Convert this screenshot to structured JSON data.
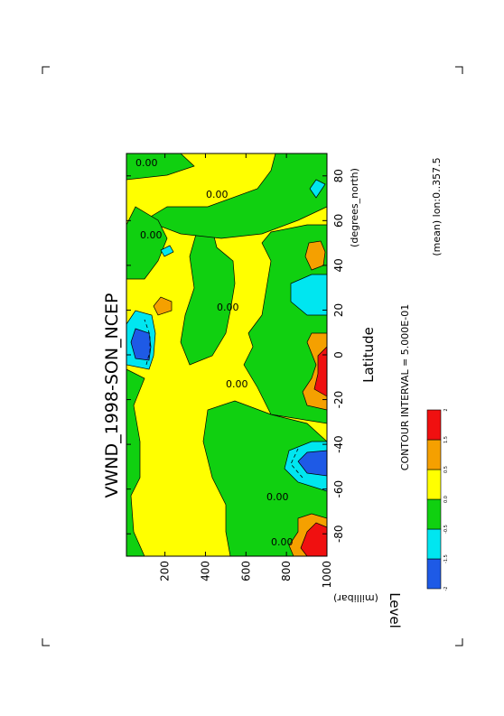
{
  "chart_data": {
    "type": "heatmap",
    "title": "VWND_1998-SON_NCEP",
    "xlabel": "Latitude",
    "x_unit_label": "(degrees_north)",
    "ylabel": "Level",
    "y_unit_label": "(millibar)",
    "x_ticks": [
      "-80",
      "-60",
      "-40",
      "-20",
      "0",
      "20",
      "40",
      "60",
      "80"
    ],
    "x_tick_values": [
      -80,
      -60,
      -40,
      -20,
      0,
      20,
      40,
      60,
      80
    ],
    "y_ticks": [
      "200",
      "400",
      "600",
      "800",
      "1000"
    ],
    "y_tick_values": [
      200,
      400,
      600,
      800,
      1000
    ],
    "xlim": [
      -90,
      90
    ],
    "ylim": [
      1000,
      10
    ],
    "contour_interval_text": "CONTOUR INTERVAL = 5.000E-01",
    "mean_note": "(mean) lon:0..357.5",
    "contour_labels": [
      "0.00",
      "0.00",
      "0.00",
      "0.00",
      "0.00",
      "0.00",
      "0.00"
    ],
    "colorbar": {
      "labels": [
        "-2",
        "-1.5",
        "-0.5",
        "0.0",
        "0.5",
        "1.5",
        "2"
      ],
      "colors": [
        "#1e5ae6",
        "#00e6f0",
        "#10d010",
        "#ffff00",
        "#f5a000",
        "#f01010"
      ]
    }
  }
}
